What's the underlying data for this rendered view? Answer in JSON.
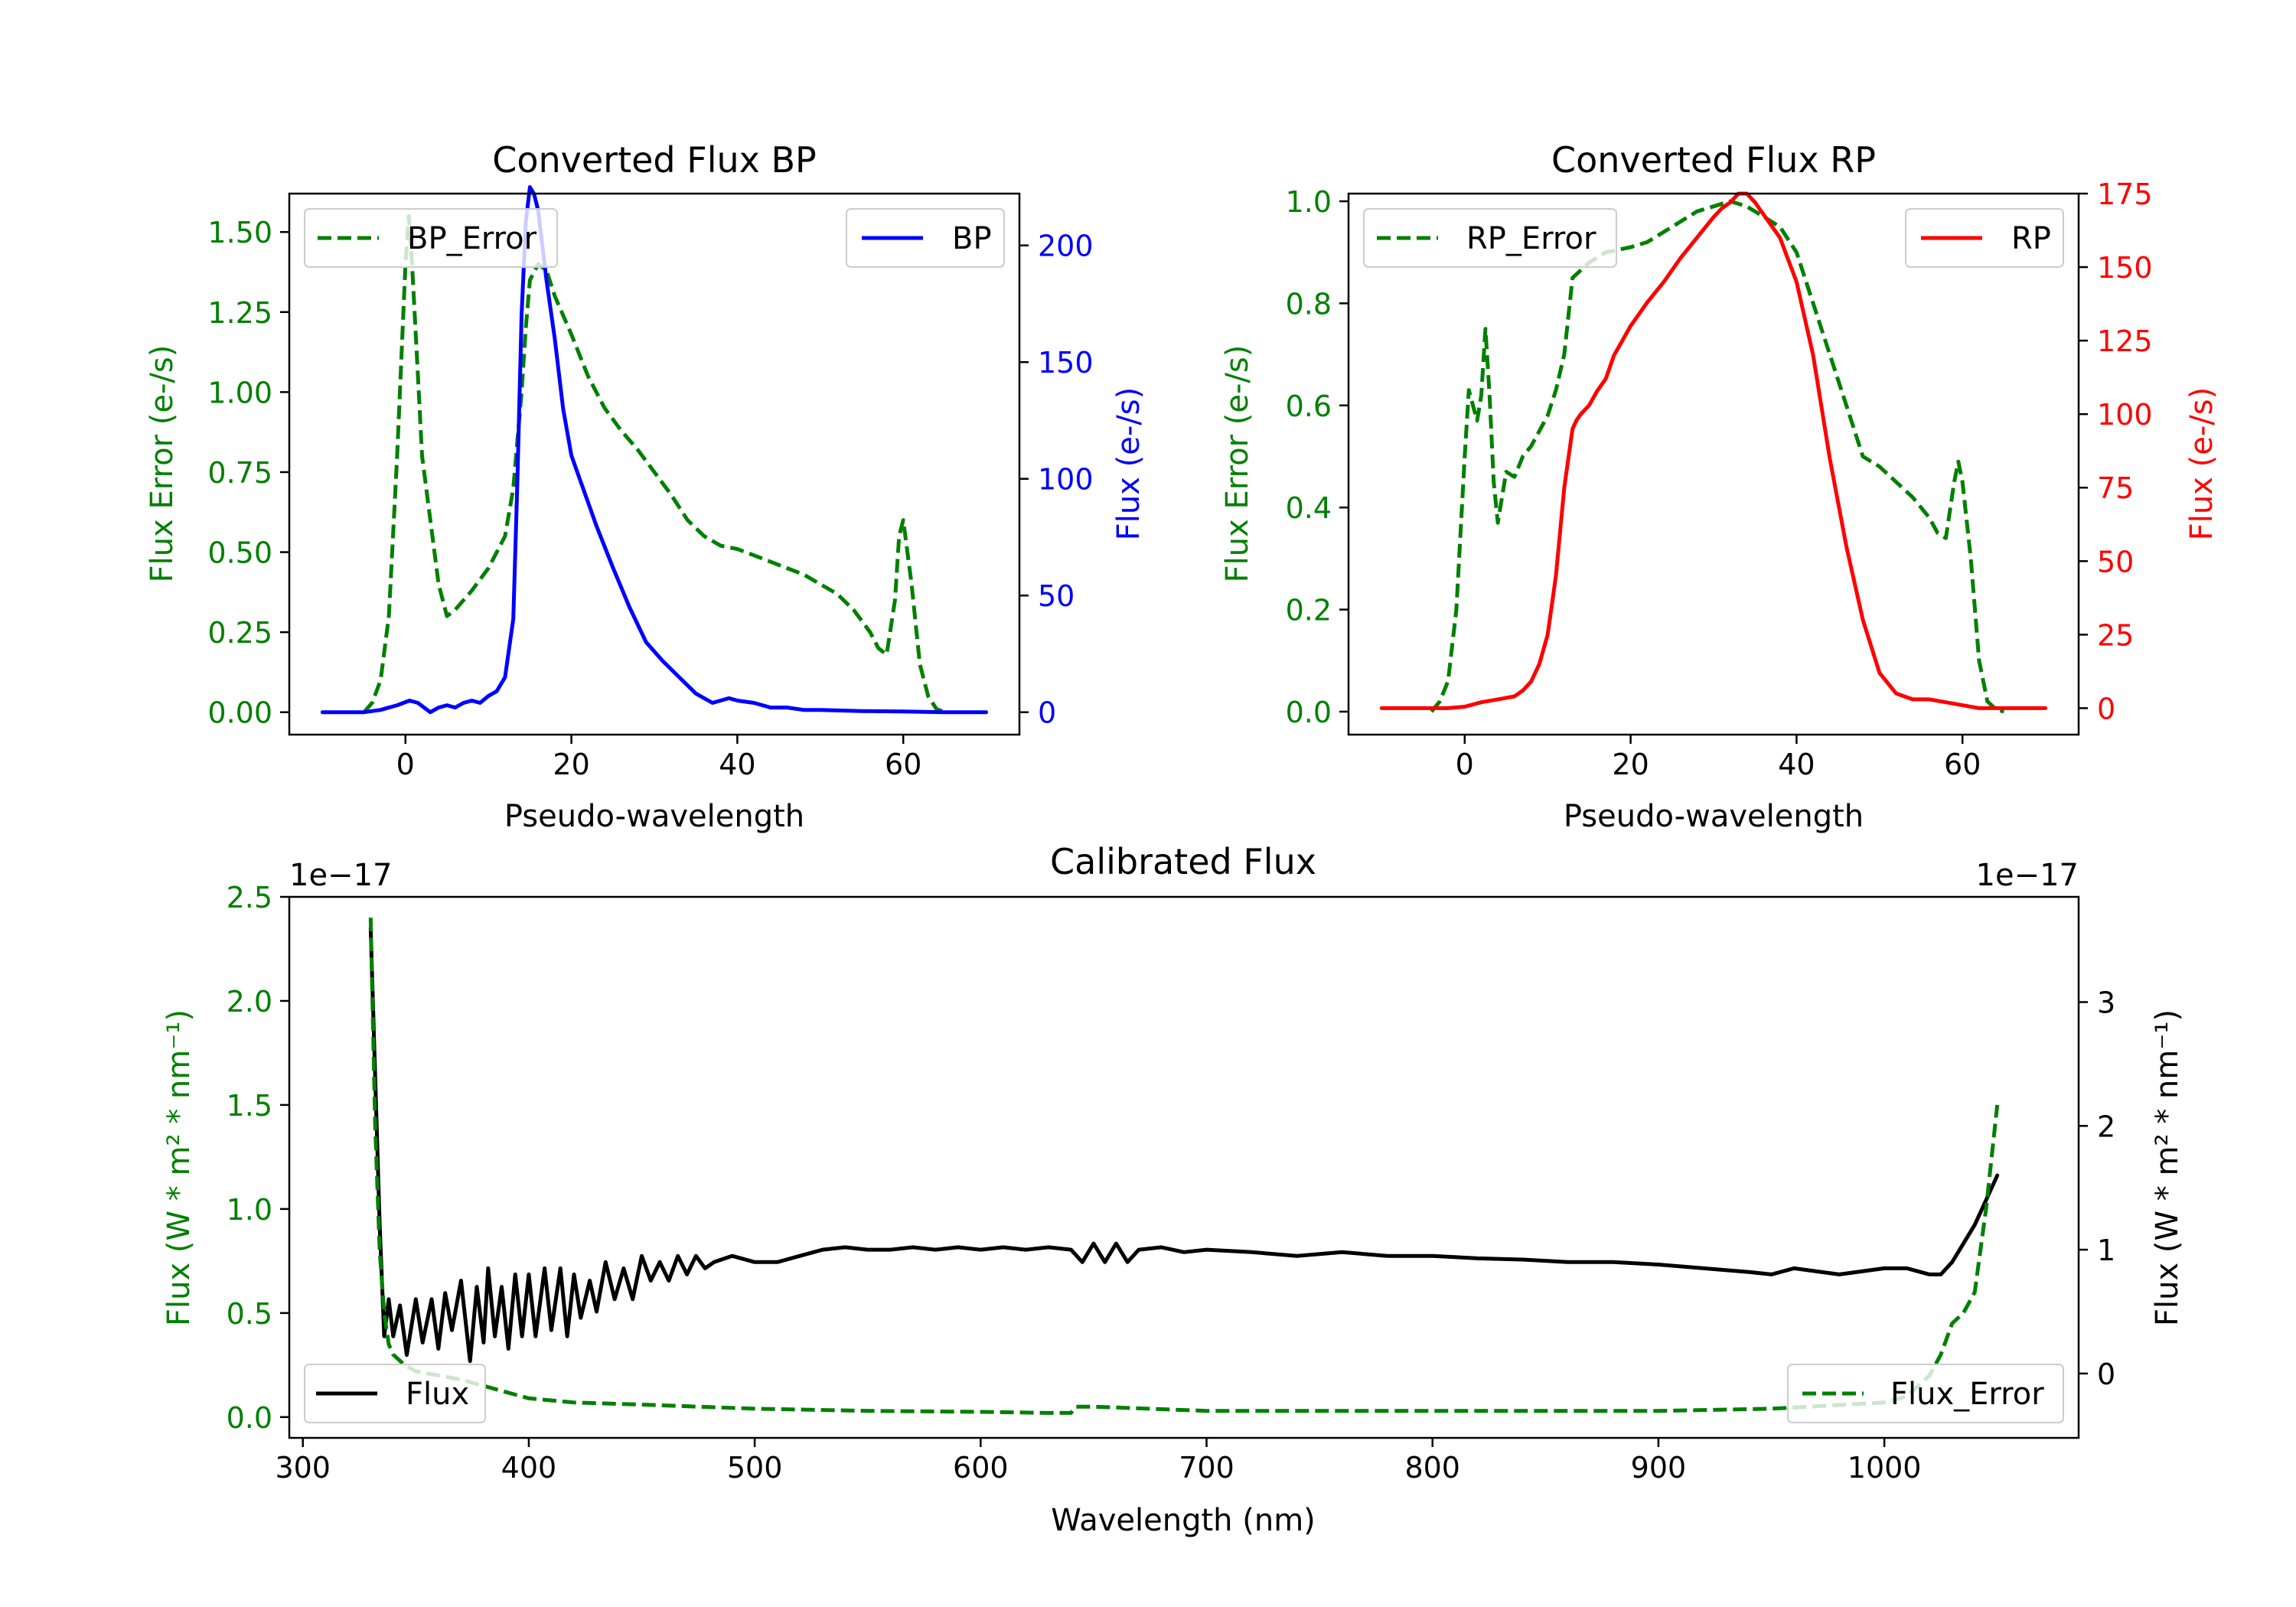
{
  "chart_data": [
    {
      "type": "line",
      "title": "Converted Flux BP",
      "xlabel": "Pseudo-wavelength",
      "ylabel_left": "Flux Error (e-/s)",
      "ylabel_right": "Flux (e-/s)",
      "xlim": [
        -14,
        74
      ],
      "ylim_left": [
        -0.07,
        1.62
      ],
      "ylim_right": [
        -9.6,
        222.2
      ],
      "xticks": [
        0,
        20,
        40,
        60
      ],
      "xtick_labels": [
        "0",
        "20",
        "40",
        "60"
      ],
      "yticks_left": [
        0,
        0.25,
        0.5,
        0.75,
        1.0,
        1.25,
        1.5
      ],
      "ytick_labels_left": [
        "0.00",
        "0.25",
        "0.50",
        "0.75",
        "1.00",
        "1.25",
        "1.50"
      ],
      "yticks_right": [
        0,
        50,
        100,
        150,
        200
      ],
      "ytick_labels_right": [
        "0",
        "50",
        "100",
        "150",
        "200"
      ],
      "left_color": "#008000",
      "right_color": "#0000ff",
      "legend_left": "upper-left",
      "legend_right": "upper-right",
      "series": [
        {
          "name": "BP_Error",
          "axis": "left",
          "color": "#008000",
          "dashed": true,
          "x": [
            -5,
            -4,
            -3,
            -2,
            -1,
            0,
            0.4,
            0.8,
            1.4,
            2,
            3,
            4,
            5,
            6,
            8,
            10,
            12,
            13,
            14,
            14.5,
            15,
            16,
            17,
            18,
            20,
            22,
            24,
            26,
            28,
            30,
            32,
            34,
            36,
            38,
            40,
            42,
            44,
            46,
            48,
            50,
            52,
            54,
            56,
            57,
            58,
            59,
            59.5,
            60,
            61,
            62,
            63,
            64,
            65
          ],
          "y": [
            0,
            0.03,
            0.1,
            0.3,
            0.8,
            1.4,
            1.55,
            1.4,
            1.1,
            0.8,
            0.6,
            0.4,
            0.3,
            0.32,
            0.38,
            0.45,
            0.55,
            0.7,
            1.0,
            1.2,
            1.35,
            1.4,
            1.38,
            1.3,
            1.18,
            1.05,
            0.95,
            0.88,
            0.82,
            0.75,
            0.68,
            0.6,
            0.55,
            0.52,
            0.51,
            0.49,
            0.47,
            0.45,
            0.43,
            0.4,
            0.37,
            0.32,
            0.25,
            0.2,
            0.18,
            0.35,
            0.55,
            0.6,
            0.4,
            0.15,
            0.05,
            0.01,
            0
          ]
        },
        {
          "name": "BP",
          "axis": "right",
          "color": "#0000ff",
          "dashed": false,
          "x": [
            -10,
            -5,
            -3,
            -1,
            0.5,
            1.5,
            3,
            4,
            5,
            6,
            7,
            8,
            9,
            10,
            11,
            12,
            13,
            13.5,
            14,
            14.5,
            15,
            15.5,
            16,
            16.5,
            17,
            18,
            19,
            20,
            21,
            22,
            23,
            25,
            27,
            29,
            31,
            33,
            35,
            37,
            39,
            40,
            42,
            44,
            46,
            48,
            50,
            55,
            60,
            65,
            70
          ],
          "y": [
            0,
            0,
            1,
            3,
            5,
            4,
            0,
            2,
            3,
            2,
            4,
            5,
            4,
            7,
            9,
            15,
            40,
            100,
            170,
            210,
            225,
            222,
            215,
            200,
            185,
            160,
            130,
            110,
            100,
            90,
            80,
            62,
            45,
            30,
            22,
            15,
            8,
            4,
            6,
            5,
            4,
            2,
            2,
            1,
            1,
            0.5,
            0.3,
            0,
            0
          ]
        }
      ]
    },
    {
      "type": "line",
      "title": "Converted Flux RP",
      "xlabel": "Pseudo-wavelength",
      "ylabel_left": "Flux Error (e-/s)",
      "ylabel_right": "Flux (e-/s)",
      "xlim": [
        -14,
        74
      ],
      "ylim_left": [
        -0.045,
        1.015
      ],
      "ylim_right": [
        -9.0,
        175.0
      ],
      "xticks": [
        0,
        20,
        40,
        60
      ],
      "xtick_labels": [
        "0",
        "20",
        "40",
        "60"
      ],
      "yticks_left": [
        0,
        0.2,
        0.4,
        0.6,
        0.8,
        1.0
      ],
      "ytick_labels_left": [
        "0.0",
        "0.2",
        "0.4",
        "0.6",
        "0.8",
        "1.0"
      ],
      "yticks_right": [
        0,
        25,
        50,
        75,
        100,
        125,
        150,
        175
      ],
      "ytick_labels_right": [
        "0",
        "25",
        "50",
        "75",
        "100",
        "125",
        "150",
        "175"
      ],
      "left_color": "#008000",
      "right_color": "#ff0000",
      "legend_left": "upper-left",
      "legend_right": "upper-right",
      "series": [
        {
          "name": "RP_Error",
          "axis": "left",
          "color": "#008000",
          "dashed": true,
          "x": [
            -4,
            -3,
            -2,
            -1,
            0,
            0.5,
            1,
            1.5,
            2,
            2.5,
            3,
            3.5,
            4,
            5,
            6,
            7,
            8,
            10,
            11,
            12,
            13,
            15,
            17,
            20,
            22,
            25,
            28,
            30,
            32,
            34,
            36,
            38,
            40,
            42,
            44,
            46,
            48,
            50,
            52,
            54,
            55,
            56,
            57,
            58,
            59,
            59.5,
            60,
            61,
            62,
            63,
            64,
            65
          ],
          "y": [
            0,
            0.02,
            0.06,
            0.2,
            0.5,
            0.63,
            0.6,
            0.57,
            0.62,
            0.75,
            0.62,
            0.45,
            0.37,
            0.47,
            0.46,
            0.5,
            0.52,
            0.58,
            0.63,
            0.7,
            0.85,
            0.88,
            0.9,
            0.91,
            0.92,
            0.95,
            0.98,
            0.99,
            1.0,
            0.99,
            0.97,
            0.95,
            0.9,
            0.8,
            0.7,
            0.6,
            0.5,
            0.48,
            0.45,
            0.42,
            0.4,
            0.38,
            0.35,
            0.34,
            0.45,
            0.49,
            0.45,
            0.3,
            0.1,
            0.02,
            0.005,
            0
          ]
        },
        {
          "name": "RP",
          "axis": "right",
          "color": "#ff0000",
          "dashed": false,
          "x": [
            -10,
            -2,
            0,
            2,
            4,
            6,
            7,
            8,
            9,
            10,
            11,
            12,
            13,
            13.5,
            14,
            15,
            16,
            17,
            18,
            19,
            20,
            22,
            24,
            26,
            28,
            30,
            31,
            32,
            33,
            34,
            35,
            36,
            38,
            40,
            42,
            44,
            46,
            48,
            50,
            52,
            54,
            56,
            58,
            60,
            62,
            65,
            70
          ],
          "y": [
            0,
            0,
            0.5,
            2,
            3,
            4,
            6,
            9,
            15,
            25,
            45,
            75,
            95,
            98,
            100,
            103,
            108,
            112,
            120,
            125,
            130,
            138,
            145,
            153,
            160,
            167,
            170,
            172,
            175,
            175,
            172,
            168,
            160,
            145,
            120,
            85,
            55,
            30,
            12,
            5,
            3,
            3,
            2,
            1,
            0,
            0,
            0
          ]
        }
      ]
    },
    {
      "type": "line",
      "title": "Calibrated Flux",
      "xlabel": "Wavelength (nm)",
      "ylabel_left": "Flux (W * m² * nm⁻¹)",
      "ylabel_right": "Flux (W * m² * nm⁻¹)",
      "offset_left": "1e−17",
      "offset_right": "1e−17",
      "xlim": [
        294,
        1086
      ],
      "ylim_left": [
        -0.1,
        2.5
      ],
      "ylim_right": [
        -0.52,
        3.85
      ],
      "xticks": [
        300,
        400,
        500,
        600,
        700,
        800,
        900,
        1000
      ],
      "xtick_labels": [
        "300",
        "400",
        "500",
        "600",
        "700",
        "800",
        "900",
        "1000"
      ],
      "yticks_left": [
        0,
        0.5,
        1.0,
        1.5,
        2.0,
        2.5
      ],
      "ytick_labels_left": [
        "0.0",
        "0.5",
        "1.0",
        "1.5",
        "2.0",
        "2.5"
      ],
      "yticks_right": [
        0,
        1,
        2,
        3
      ],
      "ytick_labels_right": [
        "0",
        "1",
        "2",
        "3"
      ],
      "left_color": "#008000",
      "right_color": "#000000",
      "legend_left": "lower-left",
      "legend_right": "lower-right",
      "series": [
        {
          "name": "Flux",
          "axis": "right",
          "color": "#000000",
          "dashed": false,
          "x": [
            330,
            332,
            334,
            336,
            338,
            340,
            343,
            346,
            350,
            353,
            357,
            360,
            363,
            366,
            370,
            374,
            377,
            380,
            382,
            385,
            388,
            391,
            394,
            397,
            400,
            403,
            407,
            410,
            414,
            417,
            420,
            423,
            427,
            430,
            434,
            438,
            442,
            446,
            450,
            454,
            458,
            462,
            466,
            470,
            474,
            478,
            482,
            490,
            500,
            510,
            520,
            530,
            540,
            550,
            560,
            570,
            580,
            590,
            600,
            610,
            620,
            630,
            640,
            645,
            650,
            655,
            660,
            665,
            670,
            680,
            690,
            700,
            720,
            740,
            760,
            780,
            800,
            820,
            840,
            860,
            880,
            900,
            920,
            940,
            950,
            960,
            980,
            1000,
            1010,
            1020,
            1025,
            1030,
            1040,
            1045,
            1050
          ],
          "y": [
            3.6,
            2.4,
            1.2,
            0.3,
            0.6,
            0.3,
            0.55,
            0.15,
            0.6,
            0.25,
            0.6,
            0.2,
            0.65,
            0.35,
            0.75,
            0.1,
            0.7,
            0.25,
            0.85,
            0.3,
            0.7,
            0.2,
            0.8,
            0.3,
            0.8,
            0.3,
            0.85,
            0.35,
            0.85,
            0.3,
            0.8,
            0.45,
            0.75,
            0.5,
            0.9,
            0.6,
            0.85,
            0.6,
            0.95,
            0.75,
            0.9,
            0.75,
            0.95,
            0.8,
            0.95,
            0.85,
            0.9,
            0.95,
            0.9,
            0.9,
            0.95,
            1.0,
            1.02,
            1.0,
            1.0,
            1.02,
            1.0,
            1.02,
            1.0,
            1.02,
            1.0,
            1.02,
            1.0,
            0.9,
            1.05,
            0.9,
            1.05,
            0.9,
            1.0,
            1.02,
            0.98,
            1.0,
            0.98,
            0.95,
            0.98,
            0.95,
            0.95,
            0.93,
            0.92,
            0.9,
            0.9,
            0.88,
            0.85,
            0.82,
            0.8,
            0.85,
            0.8,
            0.85,
            0.85,
            0.8,
            0.8,
            0.9,
            1.2,
            1.4,
            1.6
          ]
        },
        {
          "name": "Flux_Error",
          "axis": "left",
          "color": "#008000",
          "dashed": true,
          "x": [
            330,
            332,
            334,
            336,
            338,
            340,
            345,
            350,
            360,
            370,
            380,
            390,
            400,
            420,
            450,
            500,
            550,
            600,
            630,
            640,
            642,
            650,
            700,
            800,
            900,
            950,
            1000,
            1010,
            1015,
            1020,
            1025,
            1030,
            1035,
            1040,
            1045,
            1050
          ],
          "y": [
            2.4,
            1.4,
            0.8,
            0.5,
            0.35,
            0.3,
            0.25,
            0.22,
            0.2,
            0.18,
            0.15,
            0.12,
            0.09,
            0.07,
            0.06,
            0.04,
            0.03,
            0.025,
            0.02,
            0.02,
            0.05,
            0.05,
            0.03,
            0.03,
            0.03,
            0.04,
            0.07,
            0.1,
            0.15,
            0.2,
            0.3,
            0.45,
            0.5,
            0.6,
            1.0,
            1.5
          ]
        }
      ]
    }
  ]
}
